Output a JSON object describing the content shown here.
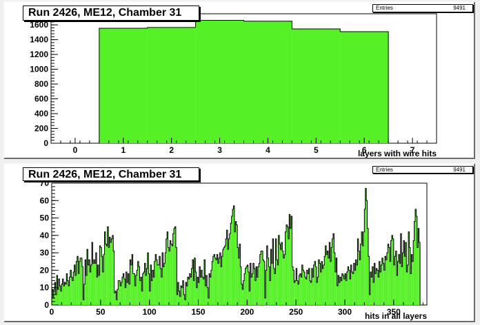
{
  "chart_data": [
    {
      "type": "bar",
      "title": "Run 2426, ME12, Chamber 31",
      "xlabel": "layers with wire hits",
      "ylabel": "",
      "stats": {
        "label": "Entries",
        "value": "9491"
      },
      "xlim": [
        -0.5,
        7.5
      ],
      "ylim": [
        0,
        1750
      ],
      "x_ticks": [
        0,
        1,
        2,
        3,
        4,
        5,
        6,
        7
      ],
      "y_ticks": [
        0,
        200,
        400,
        600,
        800,
        1000,
        1200,
        1400,
        1600
      ],
      "categories": [
        1,
        2,
        3,
        4,
        5,
        6
      ],
      "values": [
        1555,
        1565,
        1662,
        1650,
        1545,
        1508
      ],
      "fill_color": "#55f026",
      "line_color": "#000000"
    },
    {
      "type": "bar",
      "title": "Run 2426, ME12, Chamber 31",
      "xlabel": "hits in all layers",
      "ylabel": "",
      "stats": {
        "label": "Entries",
        "value": "9491"
      },
      "xlim": [
        0,
        384
      ],
      "ylim": [
        0,
        70
      ],
      "x_ticks": [
        0,
        50,
        100,
        150,
        200,
        250,
        300,
        350
      ],
      "y_ticks": [
        0,
        10,
        20,
        30,
        40,
        50,
        60,
        70
      ],
      "bin_width": 1,
      "values": [
        9,
        4,
        9,
        13,
        6,
        17,
        9,
        15,
        11,
        8,
        12,
        15,
        11,
        13,
        12,
        18,
        14,
        11,
        16,
        20,
        16,
        14,
        19,
        23,
        17,
        25,
        28,
        18,
        25,
        27,
        27,
        22,
        3,
        12,
        26,
        17,
        32,
        23,
        26,
        19,
        23,
        36,
        24,
        26,
        24,
        30,
        16,
        23,
        17,
        34,
        33,
        28,
        19,
        29,
        42,
        35,
        34,
        45,
        33,
        39,
        36,
        38,
        40,
        31,
        7,
        8,
        3,
        9,
        14,
        14,
        11,
        13,
        16,
        18,
        15,
        10,
        19,
        13,
        18,
        12,
        26,
        23,
        29,
        18,
        18,
        11,
        17,
        20,
        25,
        22,
        14,
        16,
        8,
        18,
        19,
        24,
        17,
        21,
        30,
        18,
        8,
        23,
        14,
        20,
        16,
        25,
        29,
        26,
        23,
        23,
        28,
        21,
        16,
        30,
        22,
        24,
        30,
        38,
        42,
        33,
        31,
        37,
        35,
        34,
        41,
        44,
        45,
        33,
        6,
        13,
        8,
        5,
        11,
        10,
        14,
        6,
        3,
        13,
        11,
        16,
        15,
        18,
        16,
        21,
        26,
        14,
        27,
        19,
        10,
        16,
        13,
        22,
        16,
        20,
        16,
        15,
        26,
        11,
        17,
        10,
        4,
        18,
        16,
        20,
        25,
        28,
        29,
        27,
        26,
        29,
        24,
        27,
        30,
        22,
        28,
        32,
        33,
        34,
        38,
        43,
        32,
        38,
        41,
        47,
        51,
        55,
        57,
        42,
        48,
        46,
        33,
        27,
        35,
        22,
        12,
        9,
        14,
        18,
        21,
        22,
        23,
        19,
        8,
        24,
        16,
        18,
        24,
        21,
        14,
        22,
        16,
        22,
        24,
        29,
        31,
        31,
        26,
        25,
        4,
        20,
        34,
        27,
        22,
        14,
        32,
        24,
        38,
        21,
        18,
        38,
        26,
        23,
        40,
        35,
        32,
        36,
        31,
        27,
        29,
        42,
        46,
        45,
        38,
        52,
        44,
        51,
        22,
        20,
        13,
        14,
        21,
        14,
        12,
        17,
        18,
        16,
        23,
        20,
        19,
        16,
        15,
        20,
        18,
        21,
        14,
        13,
        21,
        16,
        23,
        25,
        22,
        13,
        16,
        26,
        24,
        19,
        25,
        21,
        23,
        28,
        34,
        29,
        31,
        27,
        36,
        25,
        33,
        38,
        41,
        30,
        19,
        27,
        11,
        17,
        13,
        16,
        14,
        18,
        17,
        15,
        18,
        14,
        19,
        22,
        20,
        15,
        23,
        19,
        18,
        24,
        20,
        26,
        23,
        38,
        31,
        26,
        35,
        42,
        34,
        42,
        55,
        67,
        60,
        44,
        28,
        6,
        19,
        16,
        22,
        13,
        24,
        18,
        21,
        20,
        16,
        25,
        19,
        23,
        27,
        24,
        20,
        28,
        26,
        30,
        35,
        33,
        25,
        37,
        40,
        38,
        23,
        28,
        31,
        17,
        25,
        29,
        24,
        41,
        22,
        30,
        37,
        28,
        36,
        19,
        23,
        42,
        33,
        18,
        29,
        25,
        37,
        48,
        55,
        51,
        33,
        44,
        36
      ],
      "fill_color": "#55f026",
      "line_color": "#000000"
    }
  ]
}
